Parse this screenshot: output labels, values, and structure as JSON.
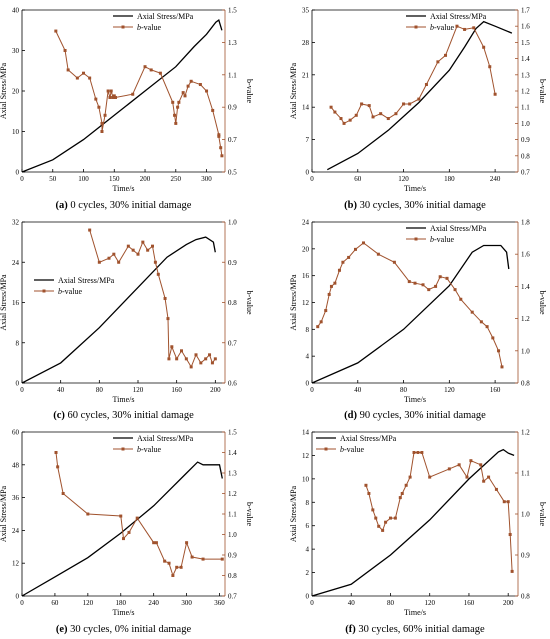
{
  "figure": {
    "panels": [
      {
        "label_prefix": "(a)",
        "label_text": " 0 cycles, 30% initial damage"
      },
      {
        "label_prefix": "(b)",
        "label_text": " 30 cycles, 30% initial damage"
      },
      {
        "label_prefix": "(c)",
        "label_text": " 60 cycles, 30% initial damage"
      },
      {
        "label_prefix": "(d)",
        "label_text": " 90 cycles, 30% initial damage"
      },
      {
        "label_prefix": "(e)",
        "label_text": " 30 cycles, 0% initial damage"
      },
      {
        "label_prefix": "(f)",
        "label_text": " 30 cycles, 60% initial damage"
      }
    ]
  },
  "chart_data": [
    {
      "type": "line",
      "xlabel": "Time/s",
      "ylabel_left": "Axial Stress/MPa",
      "ylabel_right": "b-value",
      "xlim": [
        0,
        330
      ],
      "xticks": [
        0,
        50,
        100,
        150,
        200,
        250,
        300
      ],
      "ylim_left": [
        0,
        40
      ],
      "yticks_left": [
        0,
        10,
        20,
        30,
        40
      ],
      "ylim_right": [
        0.5,
        1.5
      ],
      "yticks_right": [
        0.5,
        0.7,
        0.9,
        1.1,
        1.3,
        1.5
      ],
      "legend": {
        "position": "top-right",
        "stress_label": "Axial Stress/MPa",
        "b_label_italic": "b",
        "b_label_rest": "-value"
      },
      "colors": {
        "stress": "#000000",
        "b_value": "#a0522d"
      },
      "series": [
        {
          "name": "Axial Stress/MPa",
          "axis": "left",
          "x": [
            0,
            50,
            100,
            150,
            200,
            250,
            280,
            300,
            315,
            320,
            325
          ],
          "y": [
            0,
            3,
            8,
            14,
            20,
            26,
            31,
            34,
            37,
            37.5,
            35
          ]
        },
        {
          "name": "b-value",
          "axis": "right",
          "x": [
            55,
            70,
            75,
            90,
            100,
            110,
            120,
            125,
            130,
            130,
            135,
            140,
            143,
            145,
            148,
            150,
            152,
            180,
            200,
            210,
            225,
            245,
            248,
            250,
            253,
            255,
            262,
            265,
            270,
            275,
            290,
            300,
            310,
            320,
            320,
            323,
            325
          ],
          "y": [
            1.37,
            1.25,
            1.13,
            1.08,
            1.11,
            1.08,
            0.95,
            0.9,
            0.8,
            0.75,
            0.85,
            1.0,
            0.96,
            1.0,
            0.96,
            0.97,
            0.96,
            0.98,
            1.15,
            1.13,
            1.11,
            0.93,
            0.85,
            0.8,
            0.9,
            0.93,
            0.99,
            0.97,
            1.03,
            1.06,
            1.04,
            1.0,
            0.88,
            0.73,
            0.72,
            0.65,
            0.6
          ]
        }
      ]
    },
    {
      "type": "line",
      "xlabel": "Time/s",
      "ylabel_left": "Axial Stress/MPa",
      "ylabel_right": "b-value",
      "xlim": [
        0,
        270
      ],
      "xticks": [
        0,
        60,
        120,
        180,
        240
      ],
      "ylim_left": [
        0,
        35
      ],
      "yticks_left": [
        0,
        7,
        14,
        21,
        28,
        35
      ],
      "ylim_right": [
        0.7,
        1.7
      ],
      "yticks_right": [
        0.7,
        0.8,
        0.9,
        1.0,
        1.1,
        1.2,
        1.3,
        1.4,
        1.5,
        1.6,
        1.7
      ],
      "legend": {
        "position": "top-right",
        "stress_label": "Axial Stress/MPa",
        "b_label_italic": "b",
        "b_label_rest": "-value"
      },
      "colors": {
        "stress": "#000000",
        "b_value": "#a0522d"
      },
      "series": [
        {
          "name": "Axial Stress/MPa",
          "axis": "left",
          "x": [
            20,
            60,
            100,
            140,
            180,
            200,
            215,
            225,
            240,
            262
          ],
          "y": [
            0.5,
            4,
            9,
            15,
            22,
            27,
            31,
            32.5,
            31.5,
            30
          ]
        },
        {
          "name": "b-value",
          "axis": "right",
          "x": [
            25,
            30,
            38,
            42,
            50,
            58,
            65,
            75,
            80,
            90,
            100,
            110,
            120,
            128,
            140,
            150,
            165,
            175,
            190,
            200,
            212,
            225,
            233,
            240
          ],
          "y": [
            1.1,
            1.07,
            1.03,
            1.0,
            1.02,
            1.05,
            1.12,
            1.11,
            1.04,
            1.06,
            1.03,
            1.06,
            1.12,
            1.12,
            1.15,
            1.24,
            1.38,
            1.42,
            1.6,
            1.58,
            1.59,
            1.47,
            1.35,
            1.18
          ]
        }
      ]
    },
    {
      "type": "line",
      "xlabel": "Time/s",
      "ylabel_left": "Axial Stress/MPa",
      "ylabel_right": "b-value",
      "xlim": [
        0,
        210
      ],
      "xticks": [
        0,
        40,
        80,
        120,
        160,
        200
      ],
      "ylim_left": [
        0,
        32
      ],
      "yticks_left": [
        0,
        8,
        16,
        24,
        32
      ],
      "ylim_right": [
        0.6,
        1.0
      ],
      "yticks_right": [
        0.6,
        0.7,
        0.8,
        0.9,
        1.0
      ],
      "legend": {
        "position": "middle-left",
        "stress_label": "Axial Stress/MPa",
        "b_label_italic": "b",
        "b_label_rest": "-value"
      },
      "colors": {
        "stress": "#000000",
        "b_value": "#a0522d"
      },
      "series": [
        {
          "name": "Axial Stress/MPa",
          "axis": "left",
          "x": [
            0,
            40,
            80,
            120,
            150,
            170,
            180,
            190,
            198,
            200
          ],
          "y": [
            0,
            4,
            11,
            19,
            25,
            27.5,
            28.5,
            29,
            28,
            26
          ]
        },
        {
          "name": "b-value",
          "axis": "right",
          "x": [
            70,
            80,
            90,
            95,
            100,
            110,
            115,
            120,
            125,
            130,
            135,
            138,
            141,
            148,
            151,
            152,
            155,
            160,
            165,
            170,
            175,
            180,
            185,
            190,
            194,
            197,
            200
          ],
          "y": [
            0.98,
            0.9,
            0.91,
            0.92,
            0.9,
            0.94,
            0.93,
            0.92,
            0.95,
            0.93,
            0.94,
            0.9,
            0.87,
            0.81,
            0.76,
            0.66,
            0.69,
            0.66,
            0.68,
            0.66,
            0.64,
            0.67,
            0.65,
            0.66,
            0.67,
            0.65,
            0.66
          ]
        }
      ]
    },
    {
      "type": "line",
      "xlabel": "Time/s",
      "ylabel_left": "Axial Stress/MPa",
      "ylabel_right": "b-value",
      "xlim": [
        0,
        180
      ],
      "xticks": [
        0,
        40,
        80,
        120,
        160
      ],
      "ylim_left": [
        0,
        24
      ],
      "yticks_left": [
        0,
        4,
        8,
        12,
        16,
        20,
        24
      ],
      "ylim_right": [
        0.8,
        1.8
      ],
      "yticks_right": [
        0.8,
        1.0,
        1.2,
        1.4,
        1.6,
        1.8
      ],
      "legend": {
        "position": "top-right",
        "stress_label": "Axial Stress/MPa",
        "b_label_italic": "b",
        "b_label_rest": "-value"
      },
      "colors": {
        "stress": "#000000",
        "b_value": "#a0522d"
      },
      "series": [
        {
          "name": "Axial Stress/MPa",
          "axis": "left",
          "x": [
            0,
            40,
            80,
            120,
            140,
            150,
            165,
            170,
            172
          ],
          "y": [
            0,
            3,
            8,
            14.5,
            19.5,
            20.5,
            20.5,
            19.5,
            17
          ]
        },
        {
          "name": "b-value",
          "axis": "right",
          "x": [
            5,
            8,
            12,
            15,
            17,
            20,
            24,
            27,
            32,
            38,
            45,
            58,
            72,
            85,
            90,
            97,
            102,
            108,
            112,
            118,
            125,
            130,
            140,
            148,
            153,
            158,
            163,
            166
          ],
          "y": [
            1.15,
            1.18,
            1.25,
            1.35,
            1.4,
            1.42,
            1.5,
            1.55,
            1.58,
            1.63,
            1.67,
            1.6,
            1.55,
            1.43,
            1.42,
            1.41,
            1.38,
            1.4,
            1.46,
            1.45,
            1.38,
            1.32,
            1.24,
            1.18,
            1.15,
            1.08,
            1.0,
            0.9
          ]
        }
      ]
    },
    {
      "type": "line",
      "xlabel": "Time/s",
      "ylabel_left": "Axial Stress/MPa",
      "ylabel_right": "b-value",
      "xlim": [
        0,
        370
      ],
      "xticks": [
        0,
        60,
        120,
        180,
        240,
        300,
        360
      ],
      "ylim_left": [
        0,
        60
      ],
      "yticks_left": [
        0,
        12,
        24,
        36,
        48,
        60
      ],
      "ylim_right": [
        0.7,
        1.5
      ],
      "yticks_right": [
        0.7,
        0.8,
        0.9,
        1.0,
        1.1,
        1.2,
        1.3,
        1.4,
        1.5
      ],
      "legend": {
        "position": "top-right",
        "stress_label": "Axial Stress/MPa",
        "b_label_italic": "b",
        "b_label_rest": "-value"
      },
      "colors": {
        "stress": "#000000",
        "b_value": "#a0522d"
      },
      "series": [
        {
          "name": "Axial Stress/MPa",
          "axis": "left",
          "x": [
            0,
            60,
            120,
            180,
            240,
            300,
            320,
            330,
            360,
            365
          ],
          "y": [
            0,
            7,
            14,
            23,
            33,
            45,
            49,
            48,
            48,
            43
          ]
        },
        {
          "name": "b-value",
          "axis": "right",
          "x": [
            62,
            65,
            75,
            120,
            180,
            185,
            195,
            210,
            240,
            245,
            260,
            268,
            275,
            282,
            290,
            300,
            310,
            330,
            365
          ],
          "y": [
            1.4,
            1.33,
            1.2,
            1.1,
            1.09,
            0.98,
            1.01,
            1.08,
            0.96,
            0.96,
            0.87,
            0.86,
            0.8,
            0.84,
            0.84,
            0.96,
            0.89,
            0.88,
            0.88
          ]
        }
      ]
    },
    {
      "type": "line",
      "xlabel": "Time/s",
      "ylabel_left": "Axial Stress/MPa",
      "ylabel_right": "b-value",
      "xlim": [
        0,
        210
      ],
      "xticks": [
        0,
        40,
        80,
        120,
        160,
        200
      ],
      "ylim_left": [
        0,
        14
      ],
      "yticks_left": [
        0,
        2,
        4,
        6,
        8,
        10,
        12,
        14
      ],
      "ylim_right": [
        0.8,
        1.2
      ],
      "yticks_right": [
        0.8,
        0.9,
        1.0,
        1.1,
        1.2
      ],
      "legend": {
        "position": "top-left",
        "stress_label": "Axial Stress/MPa",
        "b_label_italic": "b",
        "b_label_rest": "-value"
      },
      "colors": {
        "stress": "#000000",
        "b_value": "#a0522d"
      },
      "series": [
        {
          "name": "Axial Stress/MPa",
          "axis": "left",
          "x": [
            0,
            40,
            80,
            120,
            160,
            190,
            195,
            200,
            206
          ],
          "y": [
            0,
            1,
            3.5,
            6.5,
            10,
            12.3,
            12.5,
            12.2,
            12
          ]
        },
        {
          "name": "b-value",
          "axis": "right",
          "x": [
            55,
            58,
            62,
            65,
            68,
            72,
            75,
            80,
            85,
            90,
            92,
            96,
            100,
            104,
            108,
            112,
            120,
            140,
            150,
            158,
            162,
            172,
            175,
            180,
            188,
            196,
            200,
            202,
            204
          ],
          "y": [
            1.07,
            1.05,
            1.01,
            0.99,
            0.97,
            0.96,
            0.98,
            0.99,
            0.99,
            1.04,
            1.05,
            1.07,
            1.09,
            1.15,
            1.15,
            1.15,
            1.09,
            1.11,
            1.12,
            1.09,
            1.13,
            1.12,
            1.08,
            1.09,
            1.06,
            1.03,
            1.03,
            0.95,
            0.86
          ]
        }
      ]
    }
  ]
}
